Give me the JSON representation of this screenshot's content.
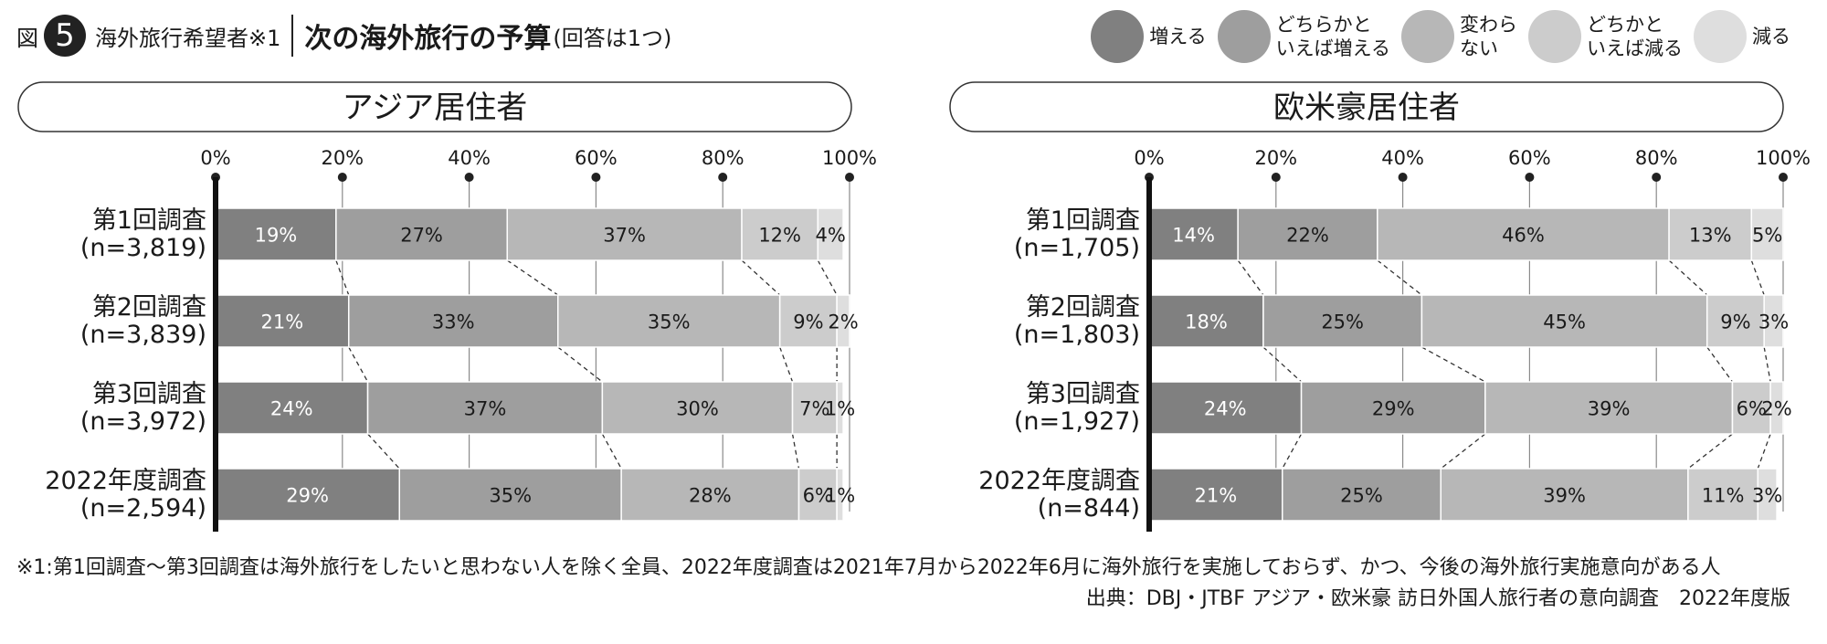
{
  "header": {
    "fig_prefix": "図",
    "fig_number": "5",
    "subject": "海外旅行希望者※1",
    "title": "次の海外旅行の予算",
    "title_paren": "(回答は1つ)"
  },
  "legend": [
    {
      "label": "増える",
      "color": "#808080"
    },
    {
      "label": "どちらかと\nいえば増える",
      "color": "#9e9e9e"
    },
    {
      "label": "変わら\nない",
      "color": "#b7b7b7"
    },
    {
      "label": "どちかと\nいえば減る",
      "color": "#cccccc"
    },
    {
      "label": "減る",
      "color": "#dedede"
    }
  ],
  "footnote": "※1:第1回調査〜第3回調査は海外旅行をしたいと思わない人を除く全員、2022年度調査は2021年7月から2022年6月に海外旅行を実施しておらず、かつ、今後の海外旅行実施意向がある人",
  "source": "出典：DBJ・JTBF アジア・欧米豪 訪日外国人旅行者の意向調査　2022年度版",
  "chart_data": [
    {
      "type": "bar",
      "stacked": true,
      "orientation": "horizontal",
      "title": "アジア居住者",
      "x_ticks": [
        "0%",
        "20%",
        "40%",
        "60%",
        "80%",
        "100%"
      ],
      "xlim": [
        0,
        100
      ],
      "categories": [
        "第1回調査",
        "第2回調査",
        "第3回調査",
        "2022年度調査"
      ],
      "sample_sizes": [
        "(n=3,819)",
        "(n=3,839)",
        "(n=3,972)",
        "(n=2,594)"
      ],
      "series": [
        {
          "name": "増える",
          "values": [
            19,
            21,
            24,
            29
          ]
        },
        {
          "name": "どちらかといえば増える",
          "values": [
            27,
            33,
            37,
            35
          ]
        },
        {
          "name": "変わらない",
          "values": [
            37,
            35,
            30,
            28
          ]
        },
        {
          "name": "どちかといえば減る",
          "values": [
            12,
            9,
            7,
            6
          ]
        },
        {
          "name": "減る",
          "values": [
            4,
            2,
            1,
            1
          ]
        }
      ]
    },
    {
      "type": "bar",
      "stacked": true,
      "orientation": "horizontal",
      "title": "欧米豪居住者",
      "x_ticks": [
        "0%",
        "20%",
        "40%",
        "60%",
        "80%",
        "100%"
      ],
      "xlim": [
        0,
        100
      ],
      "categories": [
        "第1回調査",
        "第2回調査",
        "第3回調査",
        "2022年度調査"
      ],
      "sample_sizes": [
        "(n=1,705)",
        "(n=1,803)",
        "(n=1,927)",
        "(n=844)"
      ],
      "series": [
        {
          "name": "増える",
          "values": [
            14,
            18,
            24,
            21
          ]
        },
        {
          "name": "どちらかといえば増える",
          "values": [
            22,
            25,
            29,
            25
          ]
        },
        {
          "name": "変わらない",
          "values": [
            46,
            45,
            39,
            39
          ]
        },
        {
          "name": "どちかといえば減る",
          "values": [
            13,
            9,
            6,
            11
          ]
        },
        {
          "name": "減る",
          "values": [
            5,
            3,
            2,
            3
          ]
        }
      ]
    }
  ]
}
